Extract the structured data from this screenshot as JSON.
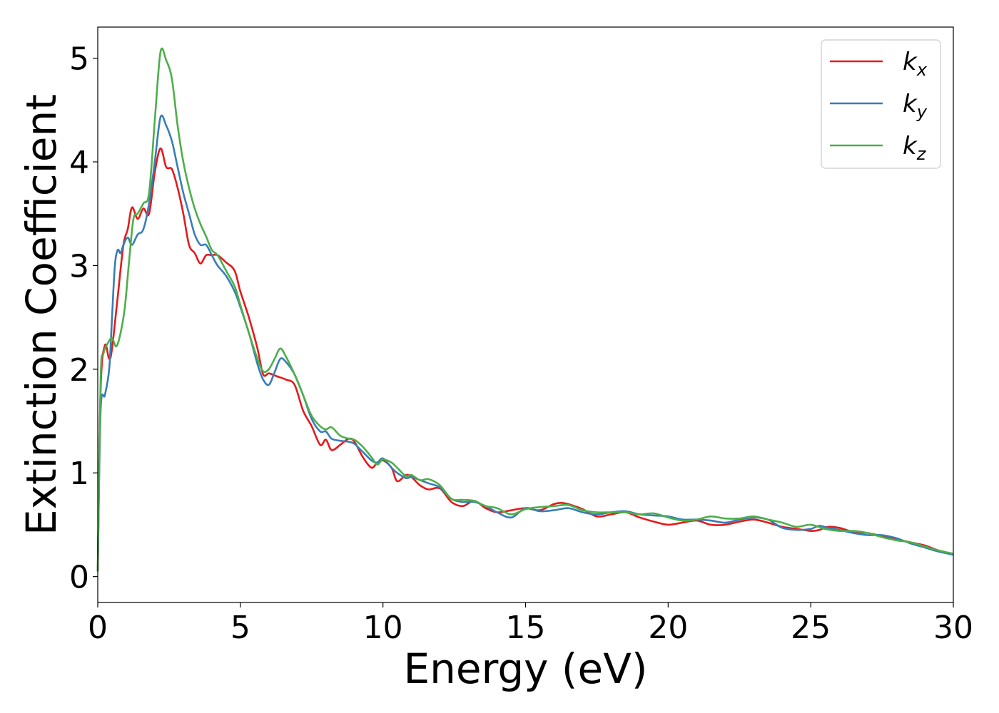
{
  "chart_data": {
    "type": "line",
    "xlabel": "Energy (eV)",
    "ylabel": "Extinction Coefficient",
    "xlim": [
      0,
      30
    ],
    "ylim": [
      -0.25,
      5.3
    ],
    "xticks": [
      0,
      5,
      10,
      15,
      20,
      25,
      30
    ],
    "yticks": [
      0,
      1,
      2,
      3,
      4,
      5
    ],
    "xtick_labels": [
      "0",
      "5",
      "10",
      "15",
      "20",
      "25",
      "30"
    ],
    "ytick_labels": [
      "0",
      "1",
      "2",
      "3",
      "4",
      "5"
    ],
    "grid": false,
    "legend_position": "top-right",
    "series": [
      {
        "name": "k_x",
        "legend_base": "k",
        "legend_sub": "x",
        "color": "#e41a1c",
        "x": [
          0,
          0.1,
          0.25,
          0.4,
          0.5,
          0.7,
          0.9,
          1.05,
          1.2,
          1.4,
          1.6,
          1.8,
          2.0,
          2.2,
          2.4,
          2.6,
          2.8,
          3.0,
          3.2,
          3.4,
          3.6,
          3.8,
          4.0,
          4.2,
          4.5,
          4.8,
          5.0,
          5.3,
          5.6,
          5.8,
          6.0,
          6.3,
          6.6,
          6.9,
          7.2,
          7.5,
          7.8,
          8.0,
          8.2,
          8.5,
          8.8,
          9.0,
          9.3,
          9.6,
          9.8,
          10.0,
          10.3,
          10.5,
          10.8,
          11.0,
          11.3,
          11.6,
          12.0,
          12.4,
          12.8,
          13.2,
          13.6,
          14.0,
          14.5,
          15.0,
          15.5,
          16.0,
          16.3,
          16.6,
          17.0,
          17.5,
          18.0,
          18.5,
          19.0,
          19.5,
          20.0,
          20.5,
          21.0,
          21.5,
          22.0,
          22.5,
          23.0,
          23.5,
          24.0,
          24.5,
          25.0,
          25.3,
          25.6,
          26.0,
          26.5,
          27.0,
          27.5,
          28.0,
          28.5,
          29.0,
          29.5,
          30.0
        ],
        "y": [
          0.05,
          1.8,
          2.23,
          2.1,
          2.2,
          2.7,
          3.2,
          3.35,
          3.56,
          3.45,
          3.55,
          3.5,
          3.9,
          4.13,
          3.95,
          3.93,
          3.75,
          3.5,
          3.2,
          3.12,
          3.02,
          3.1,
          3.1,
          3.1,
          3.03,
          2.95,
          2.75,
          2.5,
          2.2,
          1.95,
          1.96,
          1.93,
          1.9,
          1.85,
          1.6,
          1.45,
          1.27,
          1.32,
          1.22,
          1.27,
          1.33,
          1.3,
          1.15,
          1.05,
          1.1,
          1.12,
          1.05,
          0.92,
          0.98,
          0.96,
          0.88,
          0.84,
          0.85,
          0.72,
          0.68,
          0.73,
          0.66,
          0.62,
          0.64,
          0.66,
          0.64,
          0.7,
          0.71,
          0.69,
          0.65,
          0.58,
          0.6,
          0.62,
          0.57,
          0.53,
          0.5,
          0.52,
          0.54,
          0.5,
          0.5,
          0.53,
          0.55,
          0.52,
          0.48,
          0.46,
          0.44,
          0.45,
          0.48,
          0.47,
          0.43,
          0.42,
          0.39,
          0.36,
          0.33,
          0.3,
          0.25,
          0.22
        ]
      },
      {
        "name": "k_y",
        "legend_base": "k",
        "legend_sub": "y",
        "color": "#377eb8",
        "x": [
          0,
          0.1,
          0.25,
          0.4,
          0.5,
          0.6,
          0.7,
          0.8,
          0.9,
          1.05,
          1.2,
          1.4,
          1.6,
          1.8,
          2.0,
          2.2,
          2.4,
          2.6,
          2.8,
          3.0,
          3.2,
          3.4,
          3.6,
          3.8,
          4.0,
          4.2,
          4.5,
          4.8,
          5.0,
          5.3,
          5.6,
          5.8,
          6.0,
          6.2,
          6.4,
          6.6,
          6.9,
          7.2,
          7.5,
          7.8,
          8.0,
          8.2,
          8.5,
          8.8,
          9.0,
          9.3,
          9.6,
          9.8,
          10.0,
          10.3,
          10.5,
          10.8,
          11.0,
          11.3,
          11.6,
          12.0,
          12.4,
          12.8,
          13.2,
          13.6,
          14.0,
          14.5,
          15.0,
          15.5,
          16.0,
          16.5,
          17.0,
          17.5,
          18.0,
          18.5,
          19.0,
          19.5,
          20.0,
          20.5,
          21.0,
          21.5,
          22.0,
          22.5,
          23.0,
          23.5,
          24.0,
          24.5,
          25.0,
          25.3,
          25.6,
          26.0,
          26.5,
          27.0,
          27.5,
          28.0,
          28.5,
          29.0,
          29.5,
          30.0
        ],
        "y": [
          0.05,
          1.6,
          1.75,
          2.0,
          2.5,
          3.0,
          3.15,
          3.12,
          3.2,
          3.27,
          3.2,
          3.3,
          3.35,
          3.6,
          4.0,
          4.43,
          4.35,
          4.2,
          3.95,
          3.7,
          3.5,
          3.3,
          3.2,
          3.2,
          3.1,
          3.0,
          2.9,
          2.75,
          2.6,
          2.35,
          2.05,
          1.9,
          1.85,
          1.97,
          2.1,
          2.07,
          1.95,
          1.75,
          1.52,
          1.4,
          1.4,
          1.33,
          1.31,
          1.3,
          1.28,
          1.2,
          1.12,
          1.1,
          1.14,
          1.05,
          1.0,
          0.95,
          0.96,
          0.93,
          0.9,
          0.86,
          0.75,
          0.72,
          0.72,
          0.68,
          0.62,
          0.57,
          0.66,
          0.63,
          0.64,
          0.66,
          0.62,
          0.6,
          0.62,
          0.63,
          0.6,
          0.59,
          0.58,
          0.55,
          0.55,
          0.54,
          0.52,
          0.55,
          0.57,
          0.55,
          0.47,
          0.45,
          0.46,
          0.49,
          0.47,
          0.45,
          0.42,
          0.4,
          0.4,
          0.37,
          0.32,
          0.28,
          0.24,
          0.21
        ]
      },
      {
        "name": "k_z",
        "legend_base": "k",
        "legend_sub": "z",
        "color": "#4daf4a",
        "x": [
          0,
          0.1,
          0.2,
          0.35,
          0.5,
          0.65,
          0.8,
          0.95,
          1.1,
          1.25,
          1.4,
          1.6,
          1.8,
          2.0,
          2.2,
          2.4,
          2.6,
          2.8,
          3.0,
          3.2,
          3.4,
          3.6,
          3.8,
          4.0,
          4.2,
          4.5,
          4.8,
          5.0,
          5.3,
          5.6,
          5.8,
          6.0,
          6.2,
          6.4,
          6.6,
          6.9,
          7.2,
          7.5,
          7.8,
          8.0,
          8.2,
          8.5,
          8.8,
          9.0,
          9.3,
          9.6,
          9.8,
          10.0,
          10.3,
          10.5,
          10.8,
          11.0,
          11.3,
          11.6,
          12.0,
          12.4,
          12.8,
          13.2,
          13.6,
          14.0,
          14.5,
          15.0,
          15.5,
          16.0,
          16.5,
          17.0,
          17.5,
          18.0,
          18.5,
          19.0,
          19.5,
          20.0,
          20.5,
          21.0,
          21.5,
          22.0,
          22.5,
          23.0,
          23.5,
          24.0,
          24.5,
          25.0,
          25.5,
          26.0,
          26.5,
          27.0,
          27.5,
          28.0,
          28.5,
          29.0,
          29.5,
          30.0
        ],
        "y": [
          0.05,
          1.9,
          2.15,
          2.25,
          2.3,
          2.22,
          2.35,
          2.6,
          3.05,
          3.45,
          3.5,
          3.6,
          3.7,
          4.4,
          5.06,
          4.98,
          4.8,
          4.35,
          4.0,
          3.75,
          3.55,
          3.4,
          3.28,
          3.15,
          3.1,
          2.95,
          2.8,
          2.62,
          2.35,
          2.1,
          1.98,
          2.0,
          2.1,
          2.2,
          2.12,
          1.95,
          1.75,
          1.55,
          1.45,
          1.42,
          1.44,
          1.36,
          1.33,
          1.32,
          1.25,
          1.15,
          1.08,
          1.13,
          1.1,
          1.05,
          0.97,
          0.98,
          0.93,
          0.94,
          0.88,
          0.75,
          0.74,
          0.73,
          0.68,
          0.66,
          0.6,
          0.65,
          0.67,
          0.68,
          0.69,
          0.64,
          0.62,
          0.62,
          0.62,
          0.6,
          0.61,
          0.57,
          0.54,
          0.55,
          0.58,
          0.56,
          0.56,
          0.58,
          0.55,
          0.52,
          0.48,
          0.5,
          0.46,
          0.44,
          0.44,
          0.42,
          0.38,
          0.35,
          0.33,
          0.29,
          0.25,
          0.22
        ]
      }
    ]
  }
}
